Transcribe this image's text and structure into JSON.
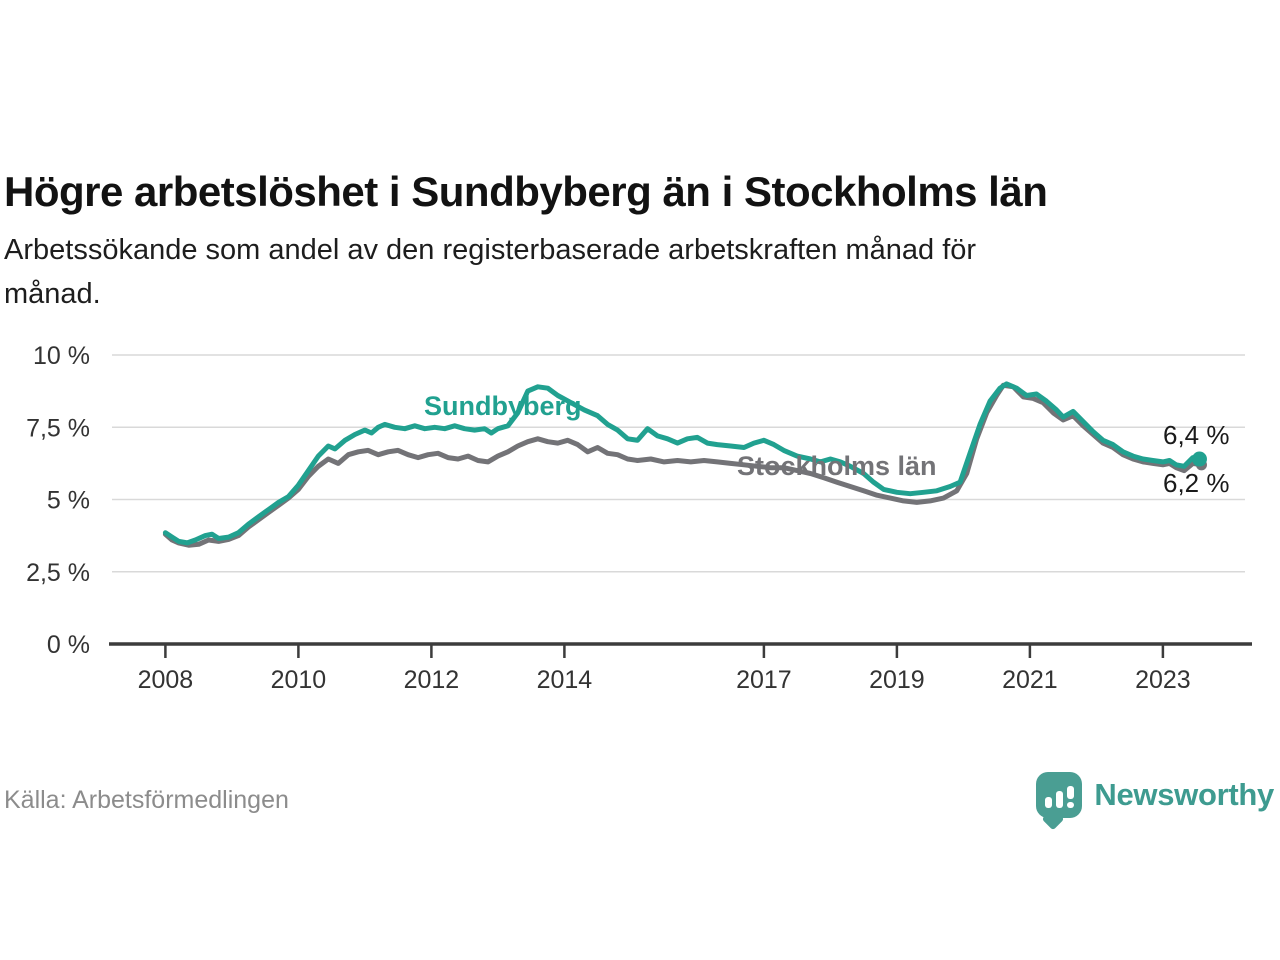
{
  "title": "Högre arbetslöshet i Sundbyberg än i Stockholms län",
  "subtitle": {
    "line1": "Arbetssökande som andel av den registerbaserade arbetskraften månad för",
    "line2": "månad."
  },
  "source": "Källa: Arbetsförmedlingen",
  "branding": {
    "logo_text": "Newsworthy",
    "logo_color": "#4a9e93"
  },
  "chart_data": {
    "type": "line",
    "title": "Högre arbetslöshet i Sundbyberg än i Stockholms län",
    "xlabel": "",
    "ylabel": "Arbetssökande som andel av den registerbaserade arbetskraften, %",
    "ylim": [
      0,
      10
    ],
    "xlim": [
      2007.2,
      2024.2
    ],
    "grid": "horizontal-only",
    "legend_position": "inline-labels",
    "colors": {
      "grid": "#d9d9d9",
      "axis": "#3c3c3c",
      "tick_text": "#333333"
    },
    "y_ticks": [
      {
        "value": 0,
        "label": "0 %"
      },
      {
        "value": 2.5,
        "label": "2,5 %"
      },
      {
        "value": 5,
        "label": "5 %"
      },
      {
        "value": 7.5,
        "label": "7,5 %"
      },
      {
        "value": 10,
        "label": "10 %"
      }
    ],
    "x_ticks": [
      {
        "year": 2008,
        "label": "2008"
      },
      {
        "year": 2010,
        "label": "2010"
      },
      {
        "year": 2012,
        "label": "2012"
      },
      {
        "year": 2014,
        "label": "2014"
      },
      {
        "year": 2017,
        "label": "2017"
      },
      {
        "year": 2019,
        "label": "2019"
      },
      {
        "year": 2021,
        "label": "2021"
      },
      {
        "year": 2023,
        "label": "2023"
      }
    ],
    "series": [
      {
        "name": "Sundbyberg",
        "color": "#21a190",
        "end_label": "6,4 %",
        "end_dot": true,
        "points": [
          [
            2008.0,
            3.85
          ],
          [
            2008.1,
            3.7
          ],
          [
            2008.2,
            3.55
          ],
          [
            2008.33,
            3.5
          ],
          [
            2008.45,
            3.6
          ],
          [
            2008.6,
            3.75
          ],
          [
            2008.7,
            3.8
          ],
          [
            2008.8,
            3.65
          ],
          [
            2008.95,
            3.7
          ],
          [
            2009.1,
            3.85
          ],
          [
            2009.25,
            4.15
          ],
          [
            2009.4,
            4.4
          ],
          [
            2009.55,
            4.65
          ],
          [
            2009.7,
            4.9
          ],
          [
            2009.85,
            5.1
          ],
          [
            2010.0,
            5.5
          ],
          [
            2010.15,
            6.0
          ],
          [
            2010.3,
            6.5
          ],
          [
            2010.45,
            6.85
          ],
          [
            2010.55,
            6.75
          ],
          [
            2010.7,
            7.05
          ],
          [
            2010.85,
            7.25
          ],
          [
            2011.0,
            7.4
          ],
          [
            2011.1,
            7.3
          ],
          [
            2011.2,
            7.5
          ],
          [
            2011.3,
            7.6
          ],
          [
            2011.45,
            7.5
          ],
          [
            2011.6,
            7.45
          ],
          [
            2011.75,
            7.55
          ],
          [
            2011.9,
            7.45
          ],
          [
            2012.05,
            7.5
          ],
          [
            2012.2,
            7.45
          ],
          [
            2012.35,
            7.55
          ],
          [
            2012.5,
            7.45
          ],
          [
            2012.65,
            7.4
          ],
          [
            2012.8,
            7.45
          ],
          [
            2012.9,
            7.3
          ],
          [
            2013.0,
            7.45
          ],
          [
            2013.15,
            7.55
          ],
          [
            2013.3,
            8.0
          ],
          [
            2013.45,
            8.75
          ],
          [
            2013.6,
            8.9
          ],
          [
            2013.75,
            8.85
          ],
          [
            2013.9,
            8.6
          ],
          [
            2014.1,
            8.35
          ],
          [
            2014.3,
            8.1
          ],
          [
            2014.5,
            7.9
          ],
          [
            2014.65,
            7.6
          ],
          [
            2014.8,
            7.4
          ],
          [
            2014.95,
            7.1
          ],
          [
            2015.1,
            7.05
          ],
          [
            2015.25,
            7.45
          ],
          [
            2015.4,
            7.2
          ],
          [
            2015.55,
            7.1
          ],
          [
            2015.7,
            6.95
          ],
          [
            2015.85,
            7.1
          ],
          [
            2016.0,
            7.15
          ],
          [
            2016.15,
            6.95
          ],
          [
            2016.3,
            6.9
          ],
          [
            2016.5,
            6.85
          ],
          [
            2016.7,
            6.8
          ],
          [
            2016.85,
            6.95
          ],
          [
            2017.0,
            7.05
          ],
          [
            2017.15,
            6.9
          ],
          [
            2017.3,
            6.7
          ],
          [
            2017.5,
            6.5
          ],
          [
            2017.7,
            6.4
          ],
          [
            2017.85,
            6.3
          ],
          [
            2018.0,
            6.4
          ],
          [
            2018.15,
            6.3
          ],
          [
            2018.3,
            6.15
          ],
          [
            2018.5,
            5.9
          ],
          [
            2018.65,
            5.6
          ],
          [
            2018.8,
            5.35
          ],
          [
            2019.0,
            5.25
          ],
          [
            2019.2,
            5.2
          ],
          [
            2019.4,
            5.25
          ],
          [
            2019.6,
            5.3
          ],
          [
            2019.8,
            5.45
          ],
          [
            2019.95,
            5.6
          ],
          [
            2020.1,
            6.6
          ],
          [
            2020.25,
            7.6
          ],
          [
            2020.4,
            8.4
          ],
          [
            2020.55,
            8.85
          ],
          [
            2020.65,
            9.0
          ],
          [
            2020.8,
            8.85
          ],
          [
            2020.95,
            8.6
          ],
          [
            2021.1,
            8.65
          ],
          [
            2021.25,
            8.4
          ],
          [
            2021.4,
            8.1
          ],
          [
            2021.5,
            7.85
          ],
          [
            2021.65,
            8.05
          ],
          [
            2021.8,
            7.7
          ],
          [
            2021.95,
            7.35
          ],
          [
            2022.1,
            7.05
          ],
          [
            2022.25,
            6.9
          ],
          [
            2022.4,
            6.65
          ],
          [
            2022.55,
            6.5
          ],
          [
            2022.7,
            6.4
          ],
          [
            2022.85,
            6.35
          ],
          [
            2023.0,
            6.3
          ],
          [
            2023.1,
            6.35
          ],
          [
            2023.2,
            6.2
          ],
          [
            2023.32,
            6.15
          ],
          [
            2023.45,
            6.45
          ],
          [
            2023.55,
            6.4
          ]
        ]
      },
      {
        "name": "Stockholms län",
        "color": "#737377",
        "end_label": "6,2 %",
        "end_dot": true,
        "points": [
          [
            2008.0,
            3.8
          ],
          [
            2008.1,
            3.6
          ],
          [
            2008.2,
            3.5
          ],
          [
            2008.35,
            3.42
          ],
          [
            2008.5,
            3.45
          ],
          [
            2008.65,
            3.6
          ],
          [
            2008.8,
            3.55
          ],
          [
            2008.95,
            3.62
          ],
          [
            2009.1,
            3.75
          ],
          [
            2009.25,
            4.05
          ],
          [
            2009.4,
            4.3
          ],
          [
            2009.55,
            4.55
          ],
          [
            2009.7,
            4.8
          ],
          [
            2009.85,
            5.05
          ],
          [
            2010.0,
            5.35
          ],
          [
            2010.15,
            5.8
          ],
          [
            2010.3,
            6.15
          ],
          [
            2010.45,
            6.4
          ],
          [
            2010.6,
            6.25
          ],
          [
            2010.75,
            6.55
          ],
          [
            2010.9,
            6.65
          ],
          [
            2011.05,
            6.7
          ],
          [
            2011.2,
            6.55
          ],
          [
            2011.35,
            6.65
          ],
          [
            2011.5,
            6.7
          ],
          [
            2011.65,
            6.55
          ],
          [
            2011.8,
            6.45
          ],
          [
            2011.95,
            6.55
          ],
          [
            2012.1,
            6.6
          ],
          [
            2012.25,
            6.45
          ],
          [
            2012.4,
            6.4
          ],
          [
            2012.55,
            6.5
          ],
          [
            2012.7,
            6.35
          ],
          [
            2012.85,
            6.3
          ],
          [
            2013.0,
            6.5
          ],
          [
            2013.15,
            6.65
          ],
          [
            2013.3,
            6.85
          ],
          [
            2013.45,
            7.0
          ],
          [
            2013.6,
            7.1
          ],
          [
            2013.75,
            7.0
          ],
          [
            2013.9,
            6.95
          ],
          [
            2014.05,
            7.05
          ],
          [
            2014.2,
            6.9
          ],
          [
            2014.35,
            6.65
          ],
          [
            2014.5,
            6.8
          ],
          [
            2014.65,
            6.6
          ],
          [
            2014.8,
            6.55
          ],
          [
            2014.95,
            6.4
          ],
          [
            2015.1,
            6.35
          ],
          [
            2015.3,
            6.4
          ],
          [
            2015.5,
            6.3
          ],
          [
            2015.7,
            6.35
          ],
          [
            2015.9,
            6.3
          ],
          [
            2016.1,
            6.35
          ],
          [
            2016.3,
            6.3
          ],
          [
            2016.5,
            6.25
          ],
          [
            2016.7,
            6.2
          ],
          [
            2016.9,
            6.15
          ],
          [
            2017.1,
            6.1
          ],
          [
            2017.3,
            6.1
          ],
          [
            2017.5,
            6.0
          ],
          [
            2017.7,
            5.9
          ],
          [
            2017.9,
            5.75
          ],
          [
            2018.1,
            5.6
          ],
          [
            2018.3,
            5.45
          ],
          [
            2018.5,
            5.3
          ],
          [
            2018.7,
            5.15
          ],
          [
            2018.9,
            5.05
          ],
          [
            2019.1,
            4.95
          ],
          [
            2019.3,
            4.9
          ],
          [
            2019.5,
            4.95
          ],
          [
            2019.7,
            5.05
          ],
          [
            2019.9,
            5.3
          ],
          [
            2020.05,
            5.9
          ],
          [
            2020.2,
            7.1
          ],
          [
            2020.35,
            8.0
          ],
          [
            2020.5,
            8.6
          ],
          [
            2020.6,
            8.95
          ],
          [
            2020.75,
            8.9
          ],
          [
            2020.9,
            8.55
          ],
          [
            2021.05,
            8.5
          ],
          [
            2021.2,
            8.35
          ],
          [
            2021.35,
            8.0
          ],
          [
            2021.5,
            7.75
          ],
          [
            2021.65,
            7.9
          ],
          [
            2021.8,
            7.55
          ],
          [
            2021.95,
            7.25
          ],
          [
            2022.1,
            6.95
          ],
          [
            2022.25,
            6.8
          ],
          [
            2022.4,
            6.55
          ],
          [
            2022.55,
            6.4
          ],
          [
            2022.7,
            6.3
          ],
          [
            2022.85,
            6.25
          ],
          [
            2023.0,
            6.2
          ],
          [
            2023.1,
            6.25
          ],
          [
            2023.2,
            6.1
          ],
          [
            2023.32,
            6.0
          ],
          [
            2023.45,
            6.25
          ],
          [
            2023.58,
            6.2
          ]
        ]
      }
    ]
  }
}
